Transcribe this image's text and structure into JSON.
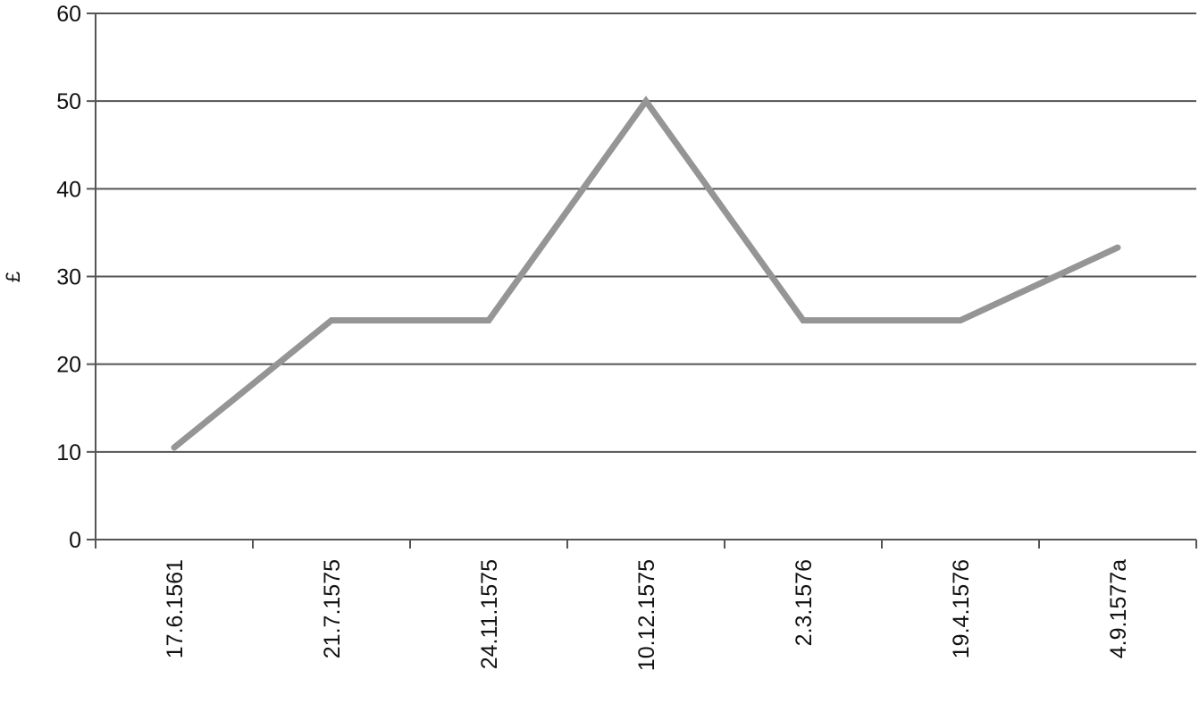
{
  "chart_data": {
    "type": "line",
    "title": "",
    "xlabel": "",
    "ylabel": "£",
    "ylim": [
      0,
      60
    ],
    "yticks": [
      0,
      10,
      20,
      30,
      40,
      50,
      60
    ],
    "grid": true,
    "categories": [
      "17.6.1561",
      "21.7.1575",
      "24.11.1575",
      "10.12.1575",
      "2.3.1576",
      "19.4.1576",
      "4.9.1577a"
    ],
    "series": [
      {
        "values": [
          10.5,
          25,
          25,
          50,
          25,
          25,
          33.3
        ],
        "color": "#959595"
      }
    ],
    "gridline_color": "#555555"
  }
}
